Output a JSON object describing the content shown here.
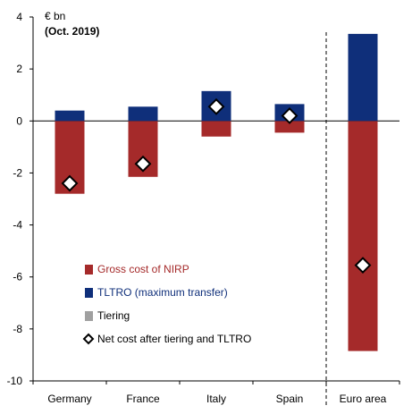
{
  "chart_data": {
    "type": "bar",
    "unit_label": "€ bn",
    "date_label": "(Oct. 2019)",
    "categories": [
      "Germany",
      "France",
      "Italy",
      "Spain",
      "Euro area"
    ],
    "series": [
      {
        "name": "Gross cost of NIRP",
        "values": [
          -2.8,
          -2.15,
          -0.6,
          -0.45,
          -8.85
        ],
        "color": "#a52a2a",
        "kind": "bar"
      },
      {
        "name": "TLTRO (maximum transfer)",
        "values": [
          0.4,
          0.55,
          1.15,
          0.65,
          3.35
        ],
        "color": "#0f2f7a",
        "kind": "bar"
      },
      {
        "name": "Tiering",
        "values": [
          0,
          0,
          0,
          0,
          0
        ],
        "color": "#a0a0a0",
        "kind": "bar"
      },
      {
        "name": "Net cost after tiering and TLTRO",
        "values": [
          -2.4,
          -1.65,
          0.55,
          0.2,
          -5.55
        ],
        "color": "#ffffff",
        "kind": "marker"
      }
    ],
    "ylim": [
      -10,
      4
    ],
    "yticks": [
      4,
      2,
      0,
      -2,
      -4,
      -6,
      -8,
      -10
    ],
    "separator_before": "Euro area",
    "legend_position": "lower-left",
    "legend_text_colors": [
      "#a52a2a",
      "#0f2f7a",
      "#000000",
      "#000000"
    ]
  }
}
